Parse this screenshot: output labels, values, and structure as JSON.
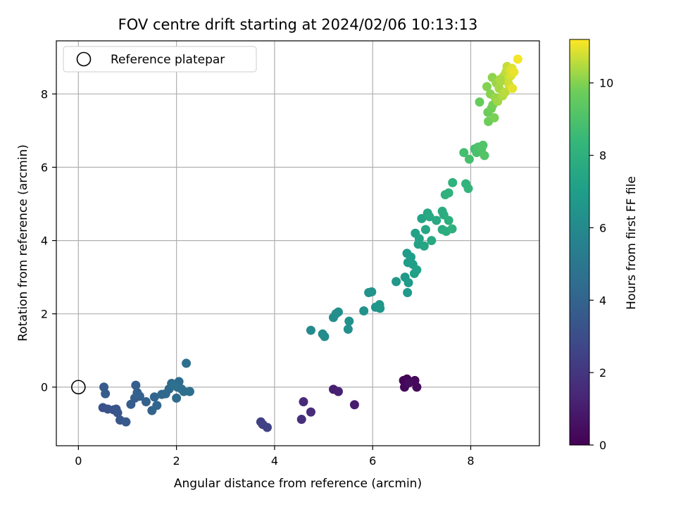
{
  "chart_data": {
    "type": "scatter",
    "title": "FOV centre drift starting at 2024/02/06 10:13:13",
    "xlabel": "Angular distance from reference (arcmin)",
    "ylabel": "Rotation from reference (arcmin)",
    "xlim": [
      -0.45,
      9.4
    ],
    "ylim": [
      -1.6,
      9.45
    ],
    "xticks": [
      0,
      2,
      4,
      6,
      8
    ],
    "yticks": [
      0,
      2,
      4,
      6,
      8
    ],
    "grid": true,
    "legend": {
      "placement": "upper-left",
      "entries": [
        "Reference platepar"
      ]
    },
    "reference_point": {
      "x": 0,
      "y": 0,
      "label": "Reference platepar"
    },
    "colorbar": {
      "label": "Hours from first FF file",
      "colormap": "viridis",
      "range": [
        0,
        11.2
      ],
      "ticks": [
        0,
        2,
        4,
        6,
        8,
        10
      ]
    },
    "points": [
      {
        "x": 6.63,
        "y": 0.18,
        "c": 0.1
      },
      {
        "x": 6.7,
        "y": 0.22,
        "c": 0.15
      },
      {
        "x": 6.65,
        "y": 0.0,
        "c": 0.2
      },
      {
        "x": 6.86,
        "y": 0.18,
        "c": 0.25
      },
      {
        "x": 6.9,
        "y": 0.0,
        "c": 0.3
      },
      {
        "x": 6.74,
        "y": 0.12,
        "c": 0.35
      },
      {
        "x": 5.63,
        "y": -0.48,
        "c": 1.0
      },
      {
        "x": 5.2,
        "y": -0.06,
        "c": 1.1
      },
      {
        "x": 5.3,
        "y": -0.12,
        "c": 1.2
      },
      {
        "x": 4.59,
        "y": -0.4,
        "c": 1.5
      },
      {
        "x": 4.74,
        "y": -0.68,
        "c": 1.6
      },
      {
        "x": 4.55,
        "y": -0.88,
        "c": 1.7
      },
      {
        "x": 3.72,
        "y": -0.95,
        "c": 2.4
      },
      {
        "x": 3.85,
        "y": -1.1,
        "c": 2.5
      },
      {
        "x": 3.76,
        "y": -1.02,
        "c": 2.45
      },
      {
        "x": 0.5,
        "y": -0.56,
        "c": 3.2
      },
      {
        "x": 0.6,
        "y": -0.6,
        "c": 3.25
      },
      {
        "x": 0.72,
        "y": -0.62,
        "c": 3.3
      },
      {
        "x": 0.77,
        "y": -0.6,
        "c": 3.35
      },
      {
        "x": 0.8,
        "y": -0.7,
        "c": 3.4
      },
      {
        "x": 0.85,
        "y": -0.9,
        "c": 3.45
      },
      {
        "x": 0.97,
        "y": -0.95,
        "c": 3.5
      },
      {
        "x": 0.52,
        "y": 0.0,
        "c": 3.6
      },
      {
        "x": 0.55,
        "y": -0.18,
        "c": 3.65
      },
      {
        "x": 1.07,
        "y": -0.47,
        "c": 3.7
      },
      {
        "x": 1.15,
        "y": -0.3,
        "c": 3.75
      },
      {
        "x": 1.17,
        "y": 0.05,
        "c": 3.8
      },
      {
        "x": 1.2,
        "y": -0.15,
        "c": 3.85
      },
      {
        "x": 1.25,
        "y": -0.25,
        "c": 3.9
      },
      {
        "x": 1.38,
        "y": -0.4,
        "c": 3.95
      },
      {
        "x": 1.5,
        "y": -0.64,
        "c": 4.0
      },
      {
        "x": 1.55,
        "y": -0.27,
        "c": 4.05
      },
      {
        "x": 1.6,
        "y": -0.5,
        "c": 4.1
      },
      {
        "x": 1.7,
        "y": -0.2,
        "c": 4.15
      },
      {
        "x": 1.78,
        "y": -0.18,
        "c": 4.2
      },
      {
        "x": 1.85,
        "y": -0.05,
        "c": 4.25
      },
      {
        "x": 1.9,
        "y": 0.1,
        "c": 4.3
      },
      {
        "x": 2.0,
        "y": -0.3,
        "c": 4.35
      },
      {
        "x": 2.02,
        "y": 0.0,
        "c": 4.4
      },
      {
        "x": 2.05,
        "y": 0.15,
        "c": 4.45
      },
      {
        "x": 2.1,
        "y": -0.05,
        "c": 4.5
      },
      {
        "x": 2.15,
        "y": -0.12,
        "c": 4.55
      },
      {
        "x": 2.2,
        "y": 0.65,
        "c": 4.6
      },
      {
        "x": 2.27,
        "y": -0.12,
        "c": 4.65
      },
      {
        "x": 1.95,
        "y": 0.05,
        "c": 4.7
      },
      {
        "x": 4.74,
        "y": 1.55,
        "c": 6.0
      },
      {
        "x": 4.98,
        "y": 1.45,
        "c": 6.05
      },
      {
        "x": 5.02,
        "y": 1.38,
        "c": 6.1
      },
      {
        "x": 5.2,
        "y": 1.9,
        "c": 6.15
      },
      {
        "x": 5.25,
        "y": 2.0,
        "c": 6.2
      },
      {
        "x": 5.3,
        "y": 2.05,
        "c": 6.25
      },
      {
        "x": 5.5,
        "y": 1.58,
        "c": 6.3
      },
      {
        "x": 5.52,
        "y": 1.8,
        "c": 6.35
      },
      {
        "x": 5.82,
        "y": 2.08,
        "c": 6.4
      },
      {
        "x": 5.92,
        "y": 2.58,
        "c": 6.45
      },
      {
        "x": 5.98,
        "y": 2.6,
        "c": 6.5
      },
      {
        "x": 6.06,
        "y": 2.18,
        "c": 6.55
      },
      {
        "x": 6.14,
        "y": 2.25,
        "c": 6.6
      },
      {
        "x": 6.15,
        "y": 2.15,
        "c": 6.65
      },
      {
        "x": 6.48,
        "y": 2.88,
        "c": 6.7
      },
      {
        "x": 6.66,
        "y": 3.0,
        "c": 6.75
      },
      {
        "x": 6.71,
        "y": 2.58,
        "c": 6.8
      },
      {
        "x": 6.73,
        "y": 2.85,
        "c": 6.85
      },
      {
        "x": 6.7,
        "y": 3.65,
        "c": 6.9
      },
      {
        "x": 6.72,
        "y": 3.4,
        "c": 6.95
      },
      {
        "x": 6.78,
        "y": 3.55,
        "c": 7.0
      },
      {
        "x": 6.82,
        "y": 3.35,
        "c": 7.05
      },
      {
        "x": 6.85,
        "y": 3.1,
        "c": 7.1
      },
      {
        "x": 6.9,
        "y": 3.2,
        "c": 7.15
      },
      {
        "x": 6.87,
        "y": 4.2,
        "c": 7.2
      },
      {
        "x": 6.93,
        "y": 3.9,
        "c": 7.25
      },
      {
        "x": 6.95,
        "y": 4.05,
        "c": 7.3
      },
      {
        "x": 7.0,
        "y": 4.6,
        "c": 7.35
      },
      {
        "x": 7.05,
        "y": 3.85,
        "c": 7.4
      },
      {
        "x": 7.08,
        "y": 4.3,
        "c": 7.45
      },
      {
        "x": 7.12,
        "y": 4.75,
        "c": 7.5
      },
      {
        "x": 7.16,
        "y": 4.65,
        "c": 7.55
      },
      {
        "x": 7.2,
        "y": 4.0,
        "c": 7.6
      },
      {
        "x": 7.3,
        "y": 4.55,
        "c": 7.65
      },
      {
        "x": 7.42,
        "y": 4.8,
        "c": 7.7
      },
      {
        "x": 7.42,
        "y": 4.3,
        "c": 7.75
      },
      {
        "x": 7.45,
        "y": 4.7,
        "c": 7.8
      },
      {
        "x": 7.5,
        "y": 4.25,
        "c": 7.85
      },
      {
        "x": 7.55,
        "y": 4.55,
        "c": 7.9
      },
      {
        "x": 7.62,
        "y": 4.32,
        "c": 7.95
      },
      {
        "x": 7.48,
        "y": 5.25,
        "c": 8.0
      },
      {
        "x": 7.55,
        "y": 5.3,
        "c": 8.05
      },
      {
        "x": 7.63,
        "y": 5.58,
        "c": 8.1
      },
      {
        "x": 7.9,
        "y": 5.55,
        "c": 8.2
      },
      {
        "x": 7.95,
        "y": 5.42,
        "c": 8.25
      },
      {
        "x": 7.86,
        "y": 6.4,
        "c": 8.8
      },
      {
        "x": 7.97,
        "y": 6.22,
        "c": 8.85
      },
      {
        "x": 8.08,
        "y": 6.5,
        "c": 8.9
      },
      {
        "x": 8.12,
        "y": 6.4,
        "c": 8.95
      },
      {
        "x": 8.15,
        "y": 6.55,
        "c": 9.0
      },
      {
        "x": 8.22,
        "y": 6.5,
        "c": 9.05
      },
      {
        "x": 8.25,
        "y": 6.6,
        "c": 9.1
      },
      {
        "x": 8.28,
        "y": 6.32,
        "c": 9.15
      },
      {
        "x": 8.18,
        "y": 7.78,
        "c": 9.6
      },
      {
        "x": 8.35,
        "y": 7.5,
        "c": 9.7
      },
      {
        "x": 8.36,
        "y": 7.25,
        "c": 9.75
      },
      {
        "x": 8.42,
        "y": 7.6,
        "c": 9.8
      },
      {
        "x": 8.45,
        "y": 7.7,
        "c": 9.85
      },
      {
        "x": 8.48,
        "y": 7.35,
        "c": 9.9
      },
      {
        "x": 8.33,
        "y": 8.2,
        "c": 10.0
      },
      {
        "x": 8.4,
        "y": 8.0,
        "c": 10.05
      },
      {
        "x": 8.44,
        "y": 8.45,
        "c": 10.1
      },
      {
        "x": 8.5,
        "y": 7.9,
        "c": 10.2
      },
      {
        "x": 8.52,
        "y": 8.3,
        "c": 10.25
      },
      {
        "x": 8.55,
        "y": 7.8,
        "c": 10.3
      },
      {
        "x": 8.58,
        "y": 8.15,
        "c": 10.35
      },
      {
        "x": 8.62,
        "y": 8.35,
        "c": 10.4
      },
      {
        "x": 8.65,
        "y": 7.95,
        "c": 10.45
      },
      {
        "x": 8.68,
        "y": 8.5,
        "c": 10.5
      },
      {
        "x": 8.7,
        "y": 8.05,
        "c": 10.55
      },
      {
        "x": 8.72,
        "y": 8.6,
        "c": 10.6
      },
      {
        "x": 8.74,
        "y": 8.75,
        "c": 10.65
      },
      {
        "x": 8.76,
        "y": 8.4,
        "c": 10.7
      },
      {
        "x": 8.78,
        "y": 8.25,
        "c": 10.75
      },
      {
        "x": 8.8,
        "y": 8.65,
        "c": 10.8
      },
      {
        "x": 8.82,
        "y": 8.5,
        "c": 10.85
      },
      {
        "x": 8.84,
        "y": 8.7,
        "c": 10.9
      },
      {
        "x": 8.85,
        "y": 8.15,
        "c": 10.95
      },
      {
        "x": 8.88,
        "y": 8.6,
        "c": 11.0
      },
      {
        "x": 8.96,
        "y": 8.95,
        "c": 11.1
      },
      {
        "x": 8.6,
        "y": 8.4,
        "c": 10.4
      }
    ]
  }
}
